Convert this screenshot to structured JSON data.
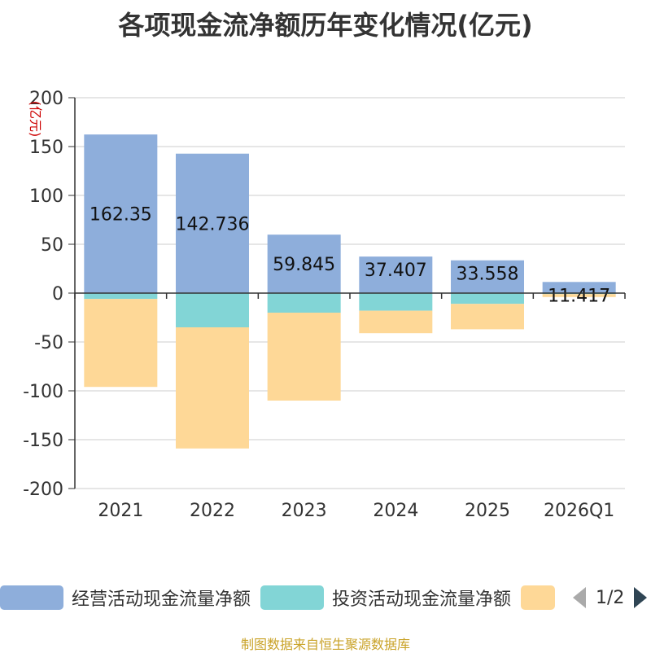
{
  "title": "各项现金流净额历年变化情况(亿元)",
  "source": "制图数据来自恒生聚源数据库",
  "colors": {
    "operating": "#8eaedb",
    "investing": "#82d5d6",
    "financing": "#fed897",
    "axis": "#333333",
    "grid": "#cccccc",
    "unit_label": "#cc0000"
  },
  "legend": {
    "items": [
      {
        "label": "经营活动现金流量净额",
        "color": "#8eaedb"
      },
      {
        "label": "投资活动现金流量净额",
        "color": "#82d5d6"
      },
      {
        "label": "",
        "color": "#fed897"
      }
    ],
    "page": "1/2",
    "prev_icon": "triangle-left-icon",
    "next_icon": "triangle-right-icon"
  },
  "chart_data": {
    "type": "bar",
    "stacked": true,
    "title": "各项现金流净额历年变化情况(亿元)",
    "ylabel": "(亿元)",
    "xlabel": "",
    "ylim": [
      -200,
      200
    ],
    "yticks": [
      200,
      150,
      100,
      50,
      0,
      -50,
      -100,
      -150,
      -200
    ],
    "categories": [
      "2021",
      "2022",
      "2023",
      "2024",
      "2025",
      "2026Q1"
    ],
    "series": [
      {
        "name": "经营活动现金流量净额",
        "values": [
          162.35,
          142.736,
          59.845,
          37.407,
          33.558,
          11.417
        ],
        "labels": [
          "162.35",
          "142.736",
          "59.845",
          "37.407",
          "33.558",
          "11.417"
        ]
      },
      {
        "name": "投资活动现金流量净额",
        "values": [
          -6,
          -35,
          -20,
          -18,
          -11,
          -1
        ]
      },
      {
        "name": "",
        "values": [
          -90,
          -124,
          -90,
          -23,
          -26,
          -3
        ]
      }
    ],
    "grid": true,
    "legend_position": "bottom"
  }
}
